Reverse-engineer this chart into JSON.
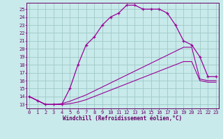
{
  "xlabel": "Windchill (Refroidissement éolien,°C)",
  "bg_color": "#c8eaea",
  "grid_color": "#a0c8c8",
  "line_color": "#990099",
  "spine_color": "#660066",
  "tick_color": "#660066",
  "x_ticks": [
    0,
    1,
    2,
    3,
    4,
    5,
    6,
    7,
    8,
    9,
    10,
    11,
    12,
    13,
    14,
    15,
    16,
    17,
    18,
    19,
    20,
    21,
    22,
    23
  ],
  "y_ticks": [
    13,
    14,
    15,
    16,
    17,
    18,
    19,
    20,
    21,
    22,
    23,
    24,
    25
  ],
  "ylim": [
    12.5,
    25.8
  ],
  "xlim": [
    -0.3,
    23.3
  ],
  "line1_x": [
    0,
    1,
    2,
    3,
    4,
    5,
    6,
    7,
    8,
    9,
    10,
    11,
    12,
    13,
    14,
    15,
    16,
    17,
    18,
    19,
    20,
    21,
    22,
    23
  ],
  "line1_y": [
    14.0,
    13.5,
    13.0,
    13.0,
    13.0,
    15.0,
    18.0,
    20.5,
    21.5,
    23.0,
    24.0,
    24.5,
    25.5,
    25.5,
    25.0,
    25.0,
    25.0,
    24.5,
    23.0,
    21.0,
    20.5,
    19.0,
    16.5,
    16.5
  ],
  "line2_x": [
    0,
    1,
    2,
    3,
    4,
    5,
    6,
    7,
    8,
    9,
    10,
    11,
    12,
    13,
    14,
    15,
    16,
    17,
    18,
    19,
    20,
    21,
    22,
    23
  ],
  "line2_y": [
    14.0,
    13.5,
    13.0,
    13.0,
    13.0,
    13.1,
    13.3,
    13.6,
    14.0,
    14.4,
    14.8,
    15.2,
    15.6,
    16.0,
    16.4,
    16.8,
    17.2,
    17.6,
    18.0,
    18.4,
    18.4,
    16.0,
    15.8,
    15.8
  ],
  "line3_x": [
    0,
    1,
    2,
    3,
    4,
    5,
    6,
    7,
    8,
    9,
    10,
    11,
    12,
    13,
    14,
    15,
    16,
    17,
    18,
    19,
    20,
    21,
    22,
    23
  ],
  "line3_y": [
    14.0,
    13.5,
    13.0,
    13.0,
    13.1,
    13.4,
    13.8,
    14.2,
    14.7,
    15.2,
    15.7,
    16.2,
    16.7,
    17.2,
    17.7,
    18.2,
    18.7,
    19.2,
    19.7,
    20.2,
    20.2,
    16.2,
    16.0,
    16.0
  ],
  "xlabel_fontsize": 5.5,
  "tick_fontsize": 5.0,
  "xlabel_fontweight": "bold"
}
